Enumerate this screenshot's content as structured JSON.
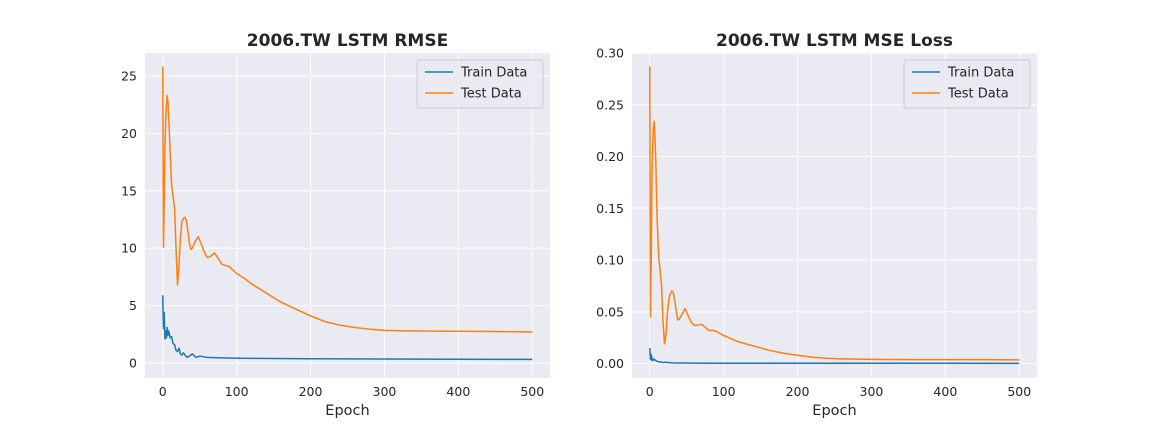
{
  "chart_data": [
    {
      "type": "line",
      "title": "2006.TW  LSTM RMSE",
      "xlabel": "Epoch",
      "ylabel": "",
      "xlim": [
        -24,
        524
      ],
      "ylim": [
        -1.3,
        27
      ],
      "xticks": [
        0,
        100,
        200,
        300,
        400,
        500
      ],
      "yticks": [
        0,
        5,
        10,
        15,
        20,
        25
      ],
      "ytick_labels": [
        "0",
        "5",
        "10",
        "15",
        "20",
        "25"
      ],
      "grid": true,
      "legend": "top-right",
      "series": [
        {
          "name": "Train Data",
          "color": "#1f77b4",
          "x": [
            0,
            1,
            2,
            3,
            4,
            5,
            6,
            7,
            8,
            10,
            12,
            14,
            16,
            18,
            20,
            22,
            24,
            26,
            28,
            30,
            33,
            36,
            40,
            45,
            50,
            60,
            80,
            100,
            150,
            200,
            300,
            400,
            500
          ],
          "y": [
            5.9,
            3.0,
            4.4,
            2.1,
            2.8,
            2.2,
            3.1,
            2.4,
            2.8,
            2.2,
            2.3,
            1.7,
            1.6,
            1.1,
            1.0,
            1.3,
            0.8,
            0.7,
            0.9,
            0.7,
            0.5,
            0.6,
            0.8,
            0.5,
            0.6,
            0.5,
            0.45,
            0.42,
            0.4,
            0.38,
            0.35,
            0.33,
            0.32
          ]
        },
        {
          "name": "Test Data",
          "color": "#ff7f0e",
          "x": [
            0,
            1,
            2,
            3,
            4,
            5,
            6,
            7,
            8,
            10,
            12,
            14,
            16,
            18,
            20,
            22,
            24,
            26,
            28,
            30,
            32,
            34,
            36,
            38,
            40,
            44,
            48,
            52,
            56,
            60,
            65,
            70,
            75,
            80,
            85,
            90,
            95,
            100,
            110,
            120,
            140,
            160,
            180,
            200,
            220,
            240,
            260,
            280,
            300,
            330,
            360,
            400,
            450,
            500
          ],
          "y": [
            25.8,
            10.1,
            14.0,
            19.0,
            21.0,
            22.5,
            23.3,
            22.8,
            21.5,
            18.5,
            15.5,
            14.5,
            13.5,
            10.0,
            6.8,
            8.5,
            11.0,
            12.3,
            12.6,
            12.7,
            12.4,
            11.5,
            10.5,
            9.9,
            10.0,
            10.6,
            11.0,
            10.4,
            9.7,
            9.2,
            9.3,
            9.6,
            9.1,
            8.6,
            8.5,
            8.4,
            8.1,
            7.8,
            7.4,
            6.9,
            6.1,
            5.3,
            4.7,
            4.1,
            3.6,
            3.3,
            3.1,
            2.95,
            2.85,
            2.8,
            2.78,
            2.77,
            2.75,
            2.7
          ]
        }
      ]
    },
    {
      "type": "line",
      "title": "2006.TW  LSTM MSE Loss",
      "xlabel": "Epoch",
      "ylabel": "",
      "xlim": [
        -24,
        524
      ],
      "ylim": [
        -0.014,
        0.3
      ],
      "xticks": [
        0,
        100,
        200,
        300,
        400,
        500
      ],
      "yticks": [
        0,
        0.05,
        0.1,
        0.15,
        0.2,
        0.25,
        0.3
      ],
      "ytick_labels": [
        "0.00",
        "0.05",
        "0.10",
        "0.15",
        "0.20",
        "0.25",
        "0.30"
      ],
      "grid": true,
      "legend": "top-right",
      "series": [
        {
          "name": "Train Data",
          "color": "#1f77b4",
          "x": [
            0,
            1,
            2,
            3,
            4,
            5,
            6,
            8,
            10,
            14,
            18,
            22,
            30,
            40,
            60,
            100,
            200,
            300,
            400,
            500
          ],
          "y": [
            0.015,
            0.004,
            0.009,
            0.003,
            0.005,
            0.003,
            0.004,
            0.003,
            0.002,
            0.0015,
            0.001,
            0.0012,
            0.0006,
            0.0005,
            0.0004,
            0.0003,
            0.0002,
            0.0002,
            0.0002,
            0.0001
          ]
        },
        {
          "name": "Test Data",
          "color": "#ff7f0e",
          "x": [
            0,
            1,
            2,
            3,
            4,
            5,
            6,
            7,
            8,
            10,
            12,
            14,
            16,
            18,
            20,
            22,
            24,
            26,
            28,
            30,
            32,
            34,
            36,
            38,
            40,
            44,
            48,
            52,
            56,
            60,
            65,
            70,
            75,
            80,
            85,
            90,
            95,
            100,
            110,
            120,
            140,
            160,
            180,
            200,
            220,
            240,
            260,
            280,
            300,
            330,
            360,
            400,
            450,
            500
          ],
          "y": [
            0.287,
            0.045,
            0.1,
            0.18,
            0.21,
            0.228,
            0.234,
            0.22,
            0.2,
            0.14,
            0.105,
            0.09,
            0.075,
            0.04,
            0.019,
            0.028,
            0.05,
            0.062,
            0.068,
            0.07,
            0.068,
            0.06,
            0.05,
            0.042,
            0.043,
            0.048,
            0.053,
            0.046,
            0.04,
            0.037,
            0.037,
            0.038,
            0.035,
            0.032,
            0.032,
            0.031,
            0.029,
            0.027,
            0.024,
            0.021,
            0.017,
            0.013,
            0.01,
            0.008,
            0.006,
            0.005,
            0.0045,
            0.0042,
            0.004,
            0.0039,
            0.0038,
            0.0037,
            0.0037,
            0.0035
          ]
        }
      ]
    }
  ]
}
